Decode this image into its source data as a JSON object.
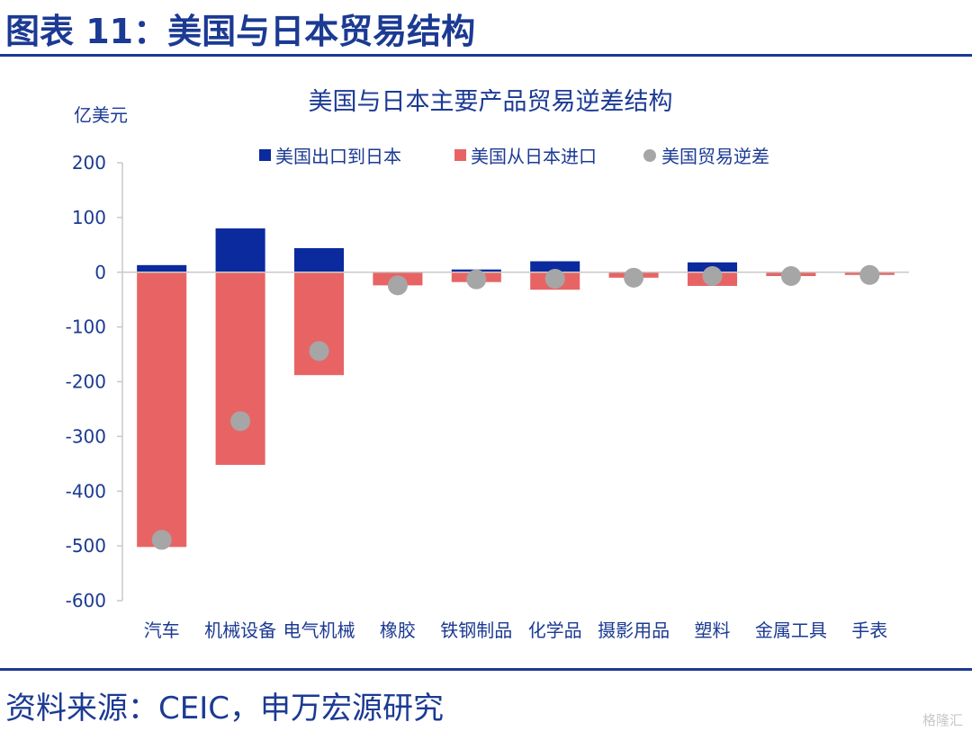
{
  "figure": {
    "title": "图表 11：美国与日本贸易结构",
    "source": "资料来源：CEIC，申万宏源研究",
    "watermark": "格隆汇"
  },
  "chart_data": {
    "type": "bar",
    "title": "美国与日本主要产品贸易逆差结构",
    "ylabel": "亿美元",
    "xlabel": "",
    "ylim": [
      -600,
      200
    ],
    "yticks": [
      200,
      100,
      0,
      -100,
      -200,
      -300,
      -400,
      -500,
      -600
    ],
    "categories": [
      "汽车",
      "机械设备",
      "电气机械",
      "橡胶",
      "铁钢制品",
      "化学品",
      "摄影用品",
      "塑料",
      "金属工具",
      "手表"
    ],
    "series": [
      {
        "name": "美国出口到日本",
        "kind": "bar",
        "color": "#0a2a9e",
        "values": [
          13,
          80,
          44,
          0,
          5,
          20,
          0,
          18,
          0,
          0
        ]
      },
      {
        "name": "美国从日本进口",
        "kind": "bar",
        "color": "#e86464",
        "values": [
          -502,
          -352,
          -188,
          -24,
          -18,
          -32,
          -10,
          -25,
          -7,
          -5
        ]
      },
      {
        "name": "美国贸易逆差",
        "kind": "point",
        "color": "#a6a6a6",
        "values": [
          -489,
          -272,
          -144,
          -24,
          -13,
          -12,
          -10,
          -7,
          -7,
          -5
        ]
      }
    ],
    "legend_position": "top",
    "grid": false
  }
}
